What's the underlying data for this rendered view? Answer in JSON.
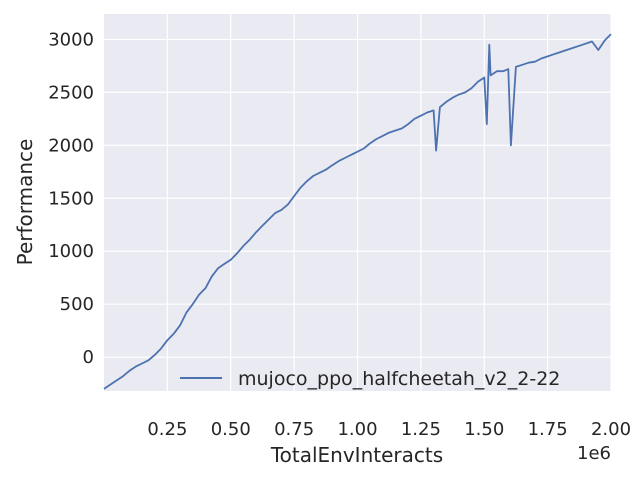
{
  "chart_data": {
    "type": "line",
    "title": "",
    "xlabel": "TotalEnvInteracts",
    "ylabel": "Performance",
    "x_offset_label": "1e6",
    "xlim": [
      0,
      2000000
    ],
    "ylim": [
      -320,
      3240
    ],
    "x_ticks": [
      {
        "value": 250000,
        "label": "0.25"
      },
      {
        "value": 500000,
        "label": "0.50"
      },
      {
        "value": 750000,
        "label": "0.75"
      },
      {
        "value": 1000000,
        "label": "1.00"
      },
      {
        "value": 1250000,
        "label": "1.25"
      },
      {
        "value": 1500000,
        "label": "1.50"
      },
      {
        "value": 1750000,
        "label": "1.75"
      },
      {
        "value": 2000000,
        "label": "2.00"
      }
    ],
    "y_ticks": [
      {
        "value": 0,
        "label": "0"
      },
      {
        "value": 500,
        "label": "500"
      },
      {
        "value": 1000,
        "label": "1000"
      },
      {
        "value": 1500,
        "label": "1500"
      },
      {
        "value": 2000,
        "label": "2000"
      },
      {
        "value": 2500,
        "label": "2500"
      },
      {
        "value": 3000,
        "label": "3000"
      }
    ],
    "grid": true,
    "legend_position": "lower-right",
    "series": [
      {
        "name": "mujoco_ppo_halfcheetah_v2_2-22",
        "color": "#4c72b0",
        "x": [
          0,
          25000,
          50000,
          75000,
          100000,
          125000,
          150000,
          175000,
          200000,
          225000,
          250000,
          275000,
          300000,
          325000,
          350000,
          375000,
          400000,
          425000,
          450000,
          475000,
          500000,
          525000,
          550000,
          575000,
          600000,
          625000,
          650000,
          675000,
          700000,
          725000,
          750000,
          775000,
          800000,
          825000,
          850000,
          875000,
          900000,
          925000,
          950000,
          975000,
          1000000,
          1025000,
          1050000,
          1075000,
          1100000,
          1125000,
          1150000,
          1175000,
          1200000,
          1225000,
          1250000,
          1275000,
          1300000,
          1310000,
          1325000,
          1350000,
          1375000,
          1400000,
          1425000,
          1450000,
          1475000,
          1500000,
          1510000,
          1520000,
          1525000,
          1550000,
          1575000,
          1595000,
          1605000,
          1625000,
          1650000,
          1675000,
          1700000,
          1725000,
          1750000,
          1775000,
          1800000,
          1825000,
          1850000,
          1875000,
          1900000,
          1925000,
          1950000,
          1975000,
          2000000
        ],
        "y": [
          -300,
          -260,
          -220,
          -180,
          -130,
          -90,
          -60,
          -30,
          20,
          80,
          160,
          220,
          300,
          420,
          500,
          590,
          650,
          760,
          840,
          880,
          920,
          980,
          1050,
          1110,
          1180,
          1240,
          1300,
          1360,
          1390,
          1440,
          1520,
          1600,
          1660,
          1710,
          1740,
          1770,
          1810,
          1850,
          1880,
          1910,
          1940,
          1970,
          2020,
          2060,
          2090,
          2120,
          2140,
          2160,
          2200,
          2250,
          2280,
          2310,
          2330,
          1950,
          2360,
          2410,
          2450,
          2480,
          2500,
          2540,
          2600,
          2640,
          2200,
          2950,
          2660,
          2700,
          2700,
          2720,
          2000,
          2740,
          2760,
          2780,
          2790,
          2820,
          2840,
          2860,
          2880,
          2900,
          2920,
          2940,
          2960,
          2980,
          2900,
          2990,
          3050
        ]
      }
    ]
  }
}
